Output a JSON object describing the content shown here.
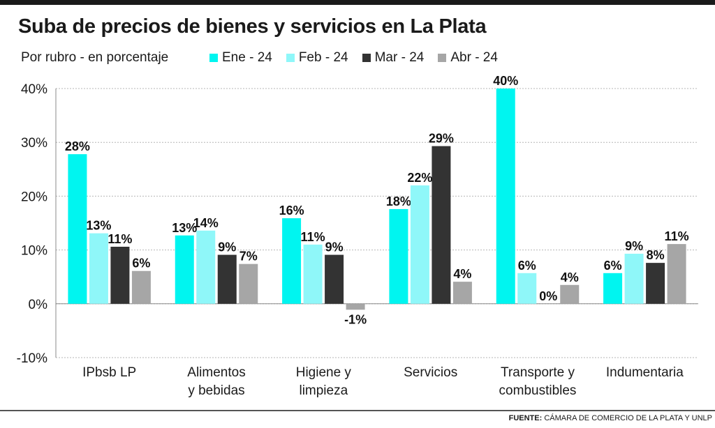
{
  "header": {
    "title": "Suba de precios de bienes y servicios en La Plata",
    "subtitle": "Por rubro - en porcentaje"
  },
  "footer": {
    "source_label": "FUENTE:",
    "source_text": "CÁMARA DE COMERCIO DE LA PLATA Y UNLP"
  },
  "chart_data": {
    "type": "bar",
    "title": "Suba de precios de bienes y servicios en La Plata",
    "subtitle": "Por rubro - en porcentaje",
    "xlabel": "",
    "ylabel": "",
    "categories": [
      [
        "IPbsb LP"
      ],
      [
        "Alimentos",
        "y bebidas"
      ],
      [
        "Higiene y",
        "limpieza"
      ],
      [
        "Servicios"
      ],
      [
        "Transporte y",
        "combustibles"
      ],
      [
        "Indumentaria"
      ]
    ],
    "series": [
      {
        "name": "Ene - 24",
        "color": "#00f5f0",
        "values": [
          27.8,
          12.7,
          15.9,
          17.6,
          40,
          5.7
        ],
        "labels": [
          "28%",
          "13%",
          "16%",
          "18%",
          "40%",
          "6%"
        ]
      },
      {
        "name": "Feb - 24",
        "color": "#8ff7f9",
        "values": [
          13.1,
          13.6,
          11,
          22,
          5.7,
          9.3
        ],
        "labels": [
          "13%",
          "14%",
          "11%",
          "22%",
          "6%",
          "9%"
        ]
      },
      {
        "name": "Mar - 24",
        "color": "#333333",
        "values": [
          10.6,
          9.1,
          9.1,
          29.3,
          0,
          7.6
        ],
        "labels": [
          "11%",
          "9%",
          "9%",
          "29%",
          "0%",
          "8%"
        ]
      },
      {
        "name": "Abr - 24",
        "color": "#a6a6a6",
        "values": [
          6.1,
          7.4,
          -1.1,
          4.1,
          3.5,
          11.1
        ],
        "labels": [
          "6%",
          "7%",
          "-1%",
          "4%",
          "4%",
          "11%"
        ]
      }
    ],
    "ylim": [
      -10,
      40
    ],
    "yticks": [
      40,
      30,
      20,
      10,
      0,
      -10
    ],
    "ytick_labels": [
      "40%",
      "30%",
      "20%",
      "10%",
      "0%",
      "-10%"
    ],
    "grid": true,
    "legend_position": "top"
  }
}
